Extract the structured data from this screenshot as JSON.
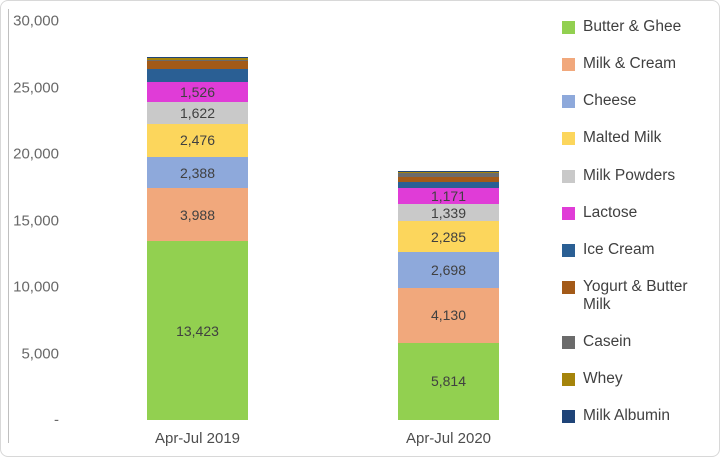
{
  "chart_data": {
    "type": "bar",
    "subtype": "stacked",
    "title": "",
    "grid": false,
    "legend_position": "right",
    "categories": [
      "Apr-Jul 2019",
      "Apr-Jul 2020"
    ],
    "y_axis": {
      "min": 0,
      "max": 30000,
      "tick_interval": 5000,
      "tick_labels": [
        "-",
        "5,000",
        "10,000",
        "15,000",
        "20,000",
        "25,000",
        "30,000"
      ]
    },
    "series": [
      {
        "name": "Butter & Ghee",
        "color": "#92d050",
        "values": [
          13423,
          5814
        ],
        "value_labels": [
          "13,423",
          "5,814"
        ],
        "show_value_labels": true
      },
      {
        "name": "Milk & Cream",
        "color": "#f1a87c",
        "values": [
          3988,
          4130
        ],
        "value_labels": [
          "3,988",
          "4,130"
        ],
        "show_value_labels": true
      },
      {
        "name": "Cheese",
        "color": "#8ea9db",
        "values": [
          2388,
          2698
        ],
        "value_labels": [
          "2,388",
          "2,698"
        ],
        "show_value_labels": true
      },
      {
        "name": "Malted Milk",
        "color": "#fcd65c",
        "values": [
          2476,
          2285
        ],
        "value_labels": [
          "2,476",
          "2,285"
        ],
        "show_value_labels": true
      },
      {
        "name": "Milk Powders",
        "color": "#c9c9c9",
        "values": [
          1622,
          1339
        ],
        "value_labels": [
          "1,622",
          "1,339"
        ],
        "show_value_labels": true
      },
      {
        "name": "Lactose",
        "color": "#e03cd7",
        "values": [
          1526,
          1171
        ],
        "value_labels": [
          "1,526",
          "1,171"
        ],
        "show_value_labels": true
      },
      {
        "name": "Ice Cream",
        "color": "#2a5f94",
        "values": [
          990,
          460
        ],
        "show_value_labels": false,
        "estimated": true
      },
      {
        "name": "Yogurt & Butter Milk",
        "color": "#a35a18",
        "values": [
          610,
          380
        ],
        "show_value_labels": false,
        "estimated": true
      },
      {
        "name": "Casein",
        "color": "#6b6b6b",
        "values": [
          60,
          310
        ],
        "show_value_labels": false,
        "estimated": true
      },
      {
        "name": "Whey",
        "color": "#a5840b",
        "values": [
          150,
          90
        ],
        "show_value_labels": false,
        "estimated": true
      },
      {
        "name": "Milk Albumin",
        "color": "#1f4478",
        "values": [
          75,
          40
        ],
        "show_value_labels": false,
        "estimated": true
      }
    ]
  }
}
